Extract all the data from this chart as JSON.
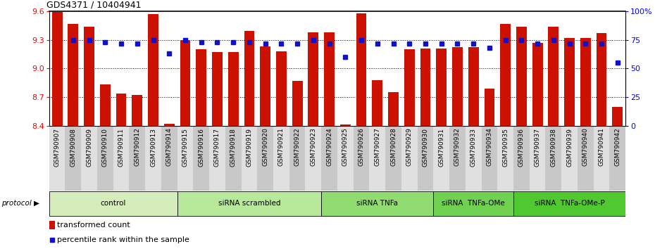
{
  "title": "GDS4371 / 10404941",
  "samples": [
    "GSM790907",
    "GSM790908",
    "GSM790909",
    "GSM790910",
    "GSM790911",
    "GSM790912",
    "GSM790913",
    "GSM790914",
    "GSM790915",
    "GSM790916",
    "GSM790917",
    "GSM790918",
    "GSM790919",
    "GSM790920",
    "GSM790921",
    "GSM790922",
    "GSM790923",
    "GSM790924",
    "GSM790925",
    "GSM790926",
    "GSM790927",
    "GSM790928",
    "GSM790929",
    "GSM790930",
    "GSM790931",
    "GSM790932",
    "GSM790933",
    "GSM790934",
    "GSM790935",
    "GSM790936",
    "GSM790937",
    "GSM790938",
    "GSM790939",
    "GSM790940",
    "GSM790941",
    "GSM790942"
  ],
  "bar_values": [
    9.59,
    9.47,
    9.44,
    8.83,
    8.74,
    8.72,
    9.57,
    8.42,
    9.3,
    9.2,
    9.17,
    9.17,
    9.39,
    9.23,
    9.18,
    8.87,
    9.38,
    9.38,
    8.41,
    9.58,
    8.88,
    8.75,
    9.2,
    9.21,
    9.21,
    9.22,
    9.22,
    8.79,
    9.47,
    9.44,
    9.27,
    9.44,
    9.32,
    9.32,
    9.37,
    8.6
  ],
  "percentile_values": [
    null,
    75,
    75,
    73,
    72,
    72,
    75,
    63,
    75,
    73,
    73,
    73,
    73,
    72,
    72,
    72,
    75,
    72,
    60,
    75,
    72,
    72,
    72,
    72,
    72,
    72,
    72,
    68,
    75,
    75,
    72,
    75,
    72,
    72,
    72,
    55
  ],
  "groups": [
    {
      "label": "control",
      "start": 0,
      "end": 8,
      "color": "#d4edba"
    },
    {
      "label": "siRNA scrambled",
      "start": 8,
      "end": 17,
      "color": "#b8e89a"
    },
    {
      "label": "siRNA TNFa",
      "start": 17,
      "end": 24,
      "color": "#90dc70"
    },
    {
      "label": "siRNA  TNFa-OMe",
      "start": 24,
      "end": 29,
      "color": "#70d050"
    },
    {
      "label": "siRNA  TNFa-OMe-P",
      "start": 29,
      "end": 36,
      "color": "#50c830"
    }
  ],
  "ylim_left": [
    8.4,
    9.6
  ],
  "ylim_right": [
    0,
    100
  ],
  "yticks_left": [
    8.4,
    8.7,
    9.0,
    9.3,
    9.6
  ],
  "yticks_right": [
    0,
    25,
    50,
    75,
    100
  ],
  "ytick_labels_right": [
    "0",
    "25",
    "50",
    "75",
    "100%"
  ],
  "bar_color": "#cc1100",
  "dot_color": "#1111cc",
  "protocol_label": "protocol ▶"
}
